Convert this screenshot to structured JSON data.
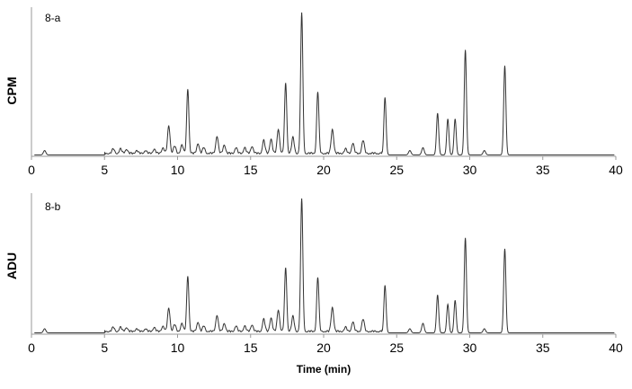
{
  "figure": {
    "x_axis_label": "Time (min)"
  },
  "chart_data": [
    {
      "type": "line",
      "panel_label": "8-a",
      "ylabel": "CPM",
      "xlim": [
        0,
        40
      ],
      "x_ticks": [
        0,
        5,
        10,
        15,
        20,
        25,
        30,
        35,
        40
      ],
      "y_axis_unlabeled": true,
      "ylim": [
        0,
        100
      ],
      "baseline": 1,
      "color": "#333333",
      "peaks": [
        {
          "t": 0.9,
          "h": 3
        },
        {
          "t": 5.6,
          "h": 3
        },
        {
          "t": 6.1,
          "h": 3
        },
        {
          "t": 6.5,
          "h": 3
        },
        {
          "t": 7.2,
          "h": 2
        },
        {
          "t": 7.8,
          "h": 2
        },
        {
          "t": 8.4,
          "h": 3
        },
        {
          "t": 9.0,
          "h": 4
        },
        {
          "t": 9.4,
          "h": 19
        },
        {
          "t": 9.8,
          "h": 5
        },
        {
          "t": 10.3,
          "h": 6
        },
        {
          "t": 10.7,
          "h": 45
        },
        {
          "t": 11.4,
          "h": 7
        },
        {
          "t": 11.8,
          "h": 4
        },
        {
          "t": 12.7,
          "h": 12
        },
        {
          "t": 13.2,
          "h": 6
        },
        {
          "t": 14.0,
          "h": 4
        },
        {
          "t": 14.6,
          "h": 4
        },
        {
          "t": 15.1,
          "h": 5
        },
        {
          "t": 15.9,
          "h": 9
        },
        {
          "t": 16.4,
          "h": 10
        },
        {
          "t": 16.9,
          "h": 17
        },
        {
          "t": 17.4,
          "h": 49
        },
        {
          "t": 17.9,
          "h": 11
        },
        {
          "t": 18.5,
          "h": 98
        },
        {
          "t": 19.6,
          "h": 43
        },
        {
          "t": 20.6,
          "h": 17
        },
        {
          "t": 21.5,
          "h": 3
        },
        {
          "t": 22.0,
          "h": 7
        },
        {
          "t": 22.7,
          "h": 9
        },
        {
          "t": 24.2,
          "h": 40
        },
        {
          "t": 25.9,
          "h": 3
        },
        {
          "t": 26.8,
          "h": 5
        },
        {
          "t": 27.8,
          "h": 29
        },
        {
          "t": 28.5,
          "h": 25
        },
        {
          "t": 29.0,
          "h": 25
        },
        {
          "t": 29.7,
          "h": 73
        },
        {
          "t": 31.0,
          "h": 3
        },
        {
          "t": 32.4,
          "h": 62
        }
      ]
    },
    {
      "type": "line",
      "panel_label": "8-b",
      "ylabel": "ADU",
      "xlim": [
        0,
        40
      ],
      "x_ticks": [
        0,
        5,
        10,
        15,
        20,
        25,
        30,
        35,
        40
      ],
      "y_axis_unlabeled": true,
      "ylim": [
        0,
        100
      ],
      "baseline": 1,
      "color": "#333333",
      "peaks": [
        {
          "t": 0.9,
          "h": 3
        },
        {
          "t": 5.6,
          "h": 3
        },
        {
          "t": 6.1,
          "h": 3
        },
        {
          "t": 6.5,
          "h": 3
        },
        {
          "t": 7.2,
          "h": 2
        },
        {
          "t": 7.8,
          "h": 2
        },
        {
          "t": 8.4,
          "h": 3
        },
        {
          "t": 9.0,
          "h": 4
        },
        {
          "t": 9.4,
          "h": 17
        },
        {
          "t": 9.8,
          "h": 5
        },
        {
          "t": 10.3,
          "h": 6
        },
        {
          "t": 10.7,
          "h": 41
        },
        {
          "t": 11.4,
          "h": 7
        },
        {
          "t": 11.8,
          "h": 4
        },
        {
          "t": 12.7,
          "h": 12
        },
        {
          "t": 13.2,
          "h": 6
        },
        {
          "t": 14.0,
          "h": 4
        },
        {
          "t": 14.6,
          "h": 4
        },
        {
          "t": 15.1,
          "h": 5
        },
        {
          "t": 15.9,
          "h": 9
        },
        {
          "t": 16.4,
          "h": 10
        },
        {
          "t": 16.9,
          "h": 16
        },
        {
          "t": 17.4,
          "h": 47
        },
        {
          "t": 17.9,
          "h": 11
        },
        {
          "t": 18.5,
          "h": 98
        },
        {
          "t": 19.6,
          "h": 40
        },
        {
          "t": 20.6,
          "h": 18
        },
        {
          "t": 21.5,
          "h": 3
        },
        {
          "t": 22.0,
          "h": 7
        },
        {
          "t": 22.7,
          "h": 9
        },
        {
          "t": 24.2,
          "h": 35
        },
        {
          "t": 25.9,
          "h": 3
        },
        {
          "t": 26.8,
          "h": 7
        },
        {
          "t": 27.8,
          "h": 28
        },
        {
          "t": 28.5,
          "h": 21
        },
        {
          "t": 29.0,
          "h": 24
        },
        {
          "t": 29.7,
          "h": 70
        },
        {
          "t": 31.0,
          "h": 3
        },
        {
          "t": 32.4,
          "h": 62
        }
      ]
    }
  ]
}
